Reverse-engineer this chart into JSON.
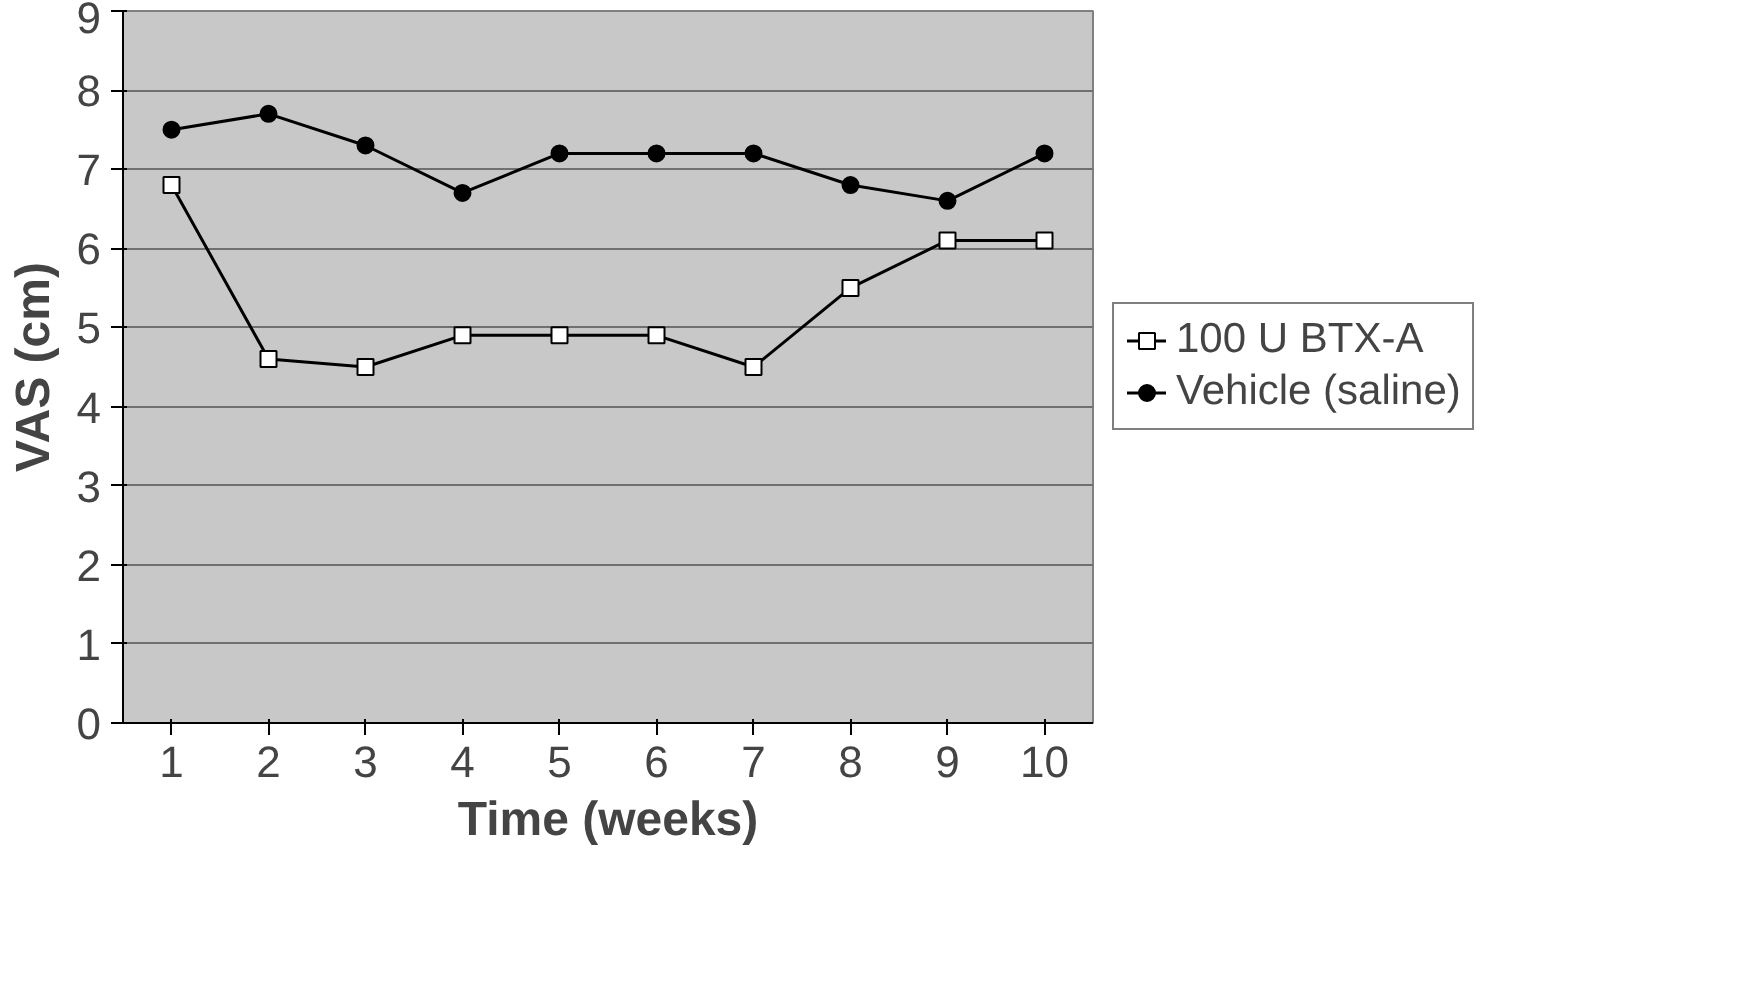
{
  "chart_data": {
    "type": "line",
    "xlabel": "Time (weeks)",
    "ylabel": "VAS (cm)",
    "categories": [
      "1",
      "2",
      "3",
      "4",
      "5",
      "6",
      "7",
      "8",
      "9",
      "10"
    ],
    "ylim": [
      0,
      9
    ],
    "yticks": [
      0,
      1,
      2,
      3,
      4,
      5,
      6,
      7,
      8,
      9
    ],
    "grid": "y",
    "legend": "right",
    "series": [
      {
        "name": "100 U BTX-A",
        "color": "#000000",
        "marker": "square",
        "values": [
          6.8,
          4.6,
          4.5,
          4.9,
          4.9,
          4.9,
          4.5,
          5.5,
          6.1,
          6.1
        ]
      },
      {
        "name": "Vehicle (saline)",
        "color": "#000000",
        "marker": "circle",
        "values": [
          7.5,
          7.7,
          7.3,
          6.7,
          7.2,
          7.2,
          7.2,
          6.8,
          6.6,
          7.2
        ]
      }
    ]
  }
}
